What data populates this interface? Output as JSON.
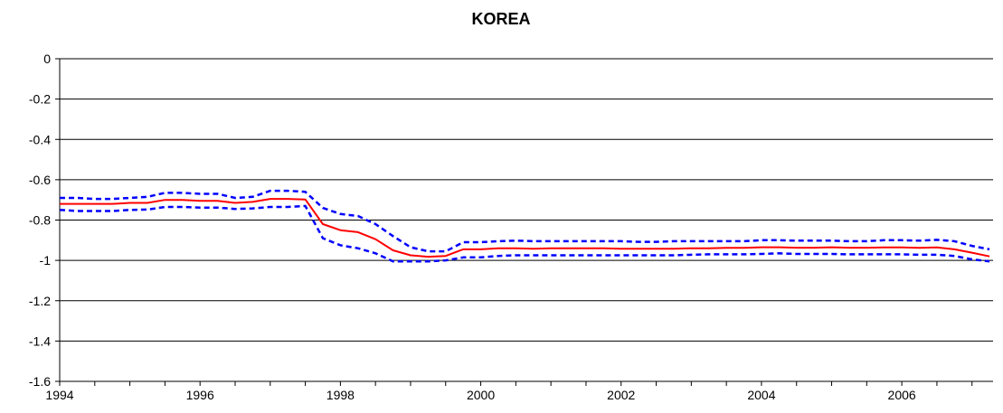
{
  "chart_data": {
    "type": "line",
    "title": "KOREA",
    "xlabel": "",
    "ylabel": "",
    "xlim": [
      1994,
      2007.3
    ],
    "ylim": [
      -1.6,
      0
    ],
    "x_ticks": [
      "1994",
      "1996",
      "1998",
      "2000",
      "2002",
      "2004",
      "2006"
    ],
    "x_tick_values": [
      1994,
      1996,
      1998,
      2000,
      2002,
      2004,
      2006
    ],
    "y_ticks": [
      "0",
      "-0.2",
      "-0.4",
      "-0.6",
      "-0.8",
      "-1",
      "-1.2",
      "-1.4",
      "-1.6"
    ],
    "y_tick_values": [
      0,
      -0.2,
      -0.4,
      -0.6,
      -0.8,
      -1,
      -1.2,
      -1.4,
      -1.6
    ],
    "grid": "horizontal",
    "legend": "none",
    "series": [
      {
        "role": "estimate",
        "color": "#ff0000",
        "style": "solid",
        "x": [
          1994.0,
          1994.25,
          1994.5,
          1994.75,
          1995.0,
          1995.25,
          1995.5,
          1995.75,
          1996.0,
          1996.25,
          1996.5,
          1996.75,
          1997.0,
          1997.25,
          1997.5,
          1997.75,
          1998.0,
          1998.25,
          1998.5,
          1998.75,
          1999.0,
          1999.25,
          1999.5,
          1999.75,
          2000.0,
          2000.25,
          2000.5,
          2000.75,
          2001.0,
          2001.25,
          2001.5,
          2001.75,
          2002.0,
          2002.25,
          2002.5,
          2002.75,
          2003.0,
          2003.25,
          2003.5,
          2003.75,
          2004.0,
          2004.25,
          2004.5,
          2004.75,
          2005.0,
          2005.25,
          2005.5,
          2005.75,
          2006.0,
          2006.25,
          2006.5,
          2006.75,
          2007.0,
          2007.25
        ],
        "y": [
          -0.72,
          -0.72,
          -0.72,
          -0.72,
          -0.715,
          -0.715,
          -0.7,
          -0.7,
          -0.705,
          -0.705,
          -0.715,
          -0.71,
          -0.695,
          -0.695,
          -0.698,
          -0.82,
          -0.85,
          -0.86,
          -0.895,
          -0.95,
          -0.975,
          -0.982,
          -0.978,
          -0.945,
          -0.945,
          -0.94,
          -0.94,
          -0.942,
          -0.94,
          -0.94,
          -0.94,
          -0.94,
          -0.942,
          -0.942,
          -0.942,
          -0.942,
          -0.94,
          -0.94,
          -0.938,
          -0.938,
          -0.935,
          -0.935,
          -0.937,
          -0.937,
          -0.935,
          -0.937,
          -0.937,
          -0.936,
          -0.936,
          -0.938,
          -0.936,
          -0.945,
          -0.962,
          -0.98
        ]
      },
      {
        "role": "upper-band",
        "color": "#0000ff",
        "style": "dotted",
        "x": [
          1994.0,
          1994.25,
          1994.5,
          1994.75,
          1995.0,
          1995.25,
          1995.5,
          1995.75,
          1996.0,
          1996.25,
          1996.5,
          1996.75,
          1997.0,
          1997.25,
          1997.5,
          1997.75,
          1998.0,
          1998.25,
          1998.5,
          1998.75,
          1999.0,
          1999.25,
          1999.5,
          1999.75,
          2000.0,
          2000.25,
          2000.5,
          2000.75,
          2001.0,
          2001.25,
          2001.5,
          2001.75,
          2002.0,
          2002.25,
          2002.5,
          2002.75,
          2003.0,
          2003.25,
          2003.5,
          2003.75,
          2004.0,
          2004.25,
          2004.5,
          2004.75,
          2005.0,
          2005.25,
          2005.5,
          2005.75,
          2006.0,
          2006.25,
          2006.5,
          2006.75,
          2007.0,
          2007.25
        ],
        "y": [
          -0.69,
          -0.69,
          -0.695,
          -0.695,
          -0.69,
          -0.685,
          -0.665,
          -0.665,
          -0.67,
          -0.67,
          -0.69,
          -0.685,
          -0.655,
          -0.655,
          -0.66,
          -0.74,
          -0.77,
          -0.78,
          -0.82,
          -0.88,
          -0.935,
          -0.955,
          -0.955,
          -0.91,
          -0.91,
          -0.905,
          -0.902,
          -0.905,
          -0.905,
          -0.905,
          -0.905,
          -0.905,
          -0.905,
          -0.908,
          -0.908,
          -0.905,
          -0.905,
          -0.905,
          -0.905,
          -0.905,
          -0.9,
          -0.9,
          -0.902,
          -0.902,
          -0.902,
          -0.905,
          -0.905,
          -0.9,
          -0.9,
          -0.902,
          -0.898,
          -0.905,
          -0.928,
          -0.945
        ]
      },
      {
        "role": "lower-band",
        "color": "#0000ff",
        "style": "dotted",
        "x": [
          1994.0,
          1994.25,
          1994.5,
          1994.75,
          1995.0,
          1995.25,
          1995.5,
          1995.75,
          1996.0,
          1996.25,
          1996.5,
          1996.75,
          1997.0,
          1997.25,
          1997.5,
          1997.75,
          1998.0,
          1998.25,
          1998.5,
          1998.75,
          1999.0,
          1999.25,
          1999.5,
          1999.75,
          2000.0,
          2000.25,
          2000.5,
          2000.75,
          2001.0,
          2001.25,
          2001.5,
          2001.75,
          2002.0,
          2002.25,
          2002.5,
          2002.75,
          2003.0,
          2003.25,
          2003.5,
          2003.75,
          2004.0,
          2004.25,
          2004.5,
          2004.75,
          2005.0,
          2005.25,
          2005.5,
          2005.75,
          2006.0,
          2006.25,
          2006.5,
          2006.75,
          2007.0,
          2007.25
        ],
        "y": [
          -0.75,
          -0.755,
          -0.755,
          -0.755,
          -0.75,
          -0.748,
          -0.735,
          -0.735,
          -0.738,
          -0.738,
          -0.745,
          -0.742,
          -0.735,
          -0.735,
          -0.73,
          -0.89,
          -0.925,
          -0.94,
          -0.965,
          -1.005,
          -1.005,
          -1.005,
          -1.0,
          -0.985,
          -0.985,
          -0.978,
          -0.975,
          -0.975,
          -0.975,
          -0.975,
          -0.975,
          -0.975,
          -0.975,
          -0.975,
          -0.975,
          -0.975,
          -0.972,
          -0.97,
          -0.97,
          -0.97,
          -0.968,
          -0.965,
          -0.968,
          -0.968,
          -0.968,
          -0.97,
          -0.97,
          -0.97,
          -0.97,
          -0.972,
          -0.972,
          -0.978,
          -0.995,
          -1.005
        ]
      }
    ]
  }
}
